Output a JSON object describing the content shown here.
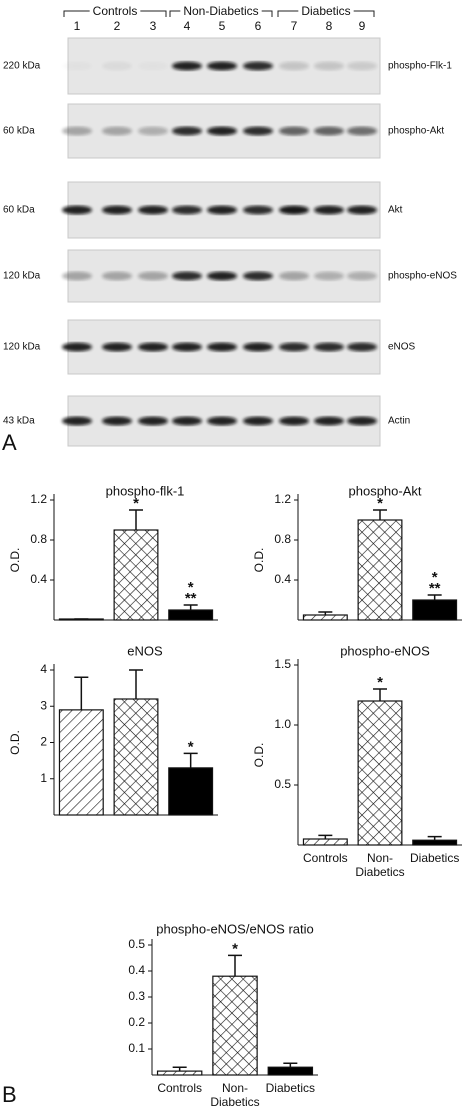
{
  "panel_labels": [
    "A",
    "B"
  ],
  "blot": {
    "groups": [
      "Controls",
      "Non-Diabetics",
      "Diabetics"
    ],
    "lanes": [
      "1",
      "2",
      "3",
      "4",
      "5",
      "6",
      "7",
      "8",
      "9"
    ],
    "rows": [
      {
        "size": "220 kDa",
        "protein": "phospho-Flk-1"
      },
      {
        "size": "60 kDa",
        "protein": "phospho-Akt"
      },
      {
        "size": "60 kDa",
        "protein": "Akt"
      },
      {
        "size": "120 kDa",
        "protein": "phospho-eNOS"
      },
      {
        "size": "120 kDa",
        "protein": "eNOS"
      },
      {
        "size": "43 kDa",
        "protein": "Actin"
      }
    ]
  },
  "chart_data": [
    {
      "type": "bar",
      "title": "phospho-flk-1",
      "ylabel": "O.D.",
      "values": [
        0.01,
        0.9,
        0.1
      ],
      "errors": [
        0,
        0.2,
        0.05
      ],
      "patterns": [
        "hatch",
        "crosshatch",
        "solid"
      ],
      "ylim": [
        0,
        1.2
      ],
      "yticks": [
        0.4,
        0.8,
        1.2
      ],
      "annotations": [
        {
          "index": 1,
          "lines": [
            "*"
          ]
        },
        {
          "index": 2,
          "lines": [
            "*",
            "**"
          ]
        }
      ]
    },
    {
      "type": "bar",
      "title": "phospho-Akt",
      "ylabel": "O.D.",
      "values": [
        0.05,
        1.0,
        0.2
      ],
      "errors": [
        0.03,
        0.1,
        0.05
      ],
      "patterns": [
        "hatch",
        "crosshatch",
        "solid"
      ],
      "ylim": [
        0,
        1.2
      ],
      "yticks": [
        0.4,
        0.8,
        1.2
      ],
      "annotations": [
        {
          "index": 1,
          "lines": [
            "*"
          ]
        },
        {
          "index": 2,
          "lines": [
            "*",
            "**"
          ]
        }
      ]
    },
    {
      "type": "bar",
      "title": "eNOS",
      "ylabel": "O.D.",
      "values": [
        2.9,
        3.2,
        1.3
      ],
      "errors": [
        0.9,
        0.8,
        0.4
      ],
      "patterns": [
        "hatch",
        "crosshatch",
        "solid"
      ],
      "ylim": [
        0,
        4
      ],
      "yticks": [
        1,
        2,
        3,
        4
      ],
      "annotations": [
        {
          "index": 2,
          "lines": [
            "*"
          ]
        }
      ]
    },
    {
      "type": "bar",
      "title": "phospho-eNOS",
      "ylabel": "O.D.",
      "categories": [
        [
          "Controls"
        ],
        [
          "Non-",
          "Diabetics"
        ],
        [
          "Diabetics"
        ]
      ],
      "values": [
        0.05,
        1.2,
        0.04
      ],
      "errors": [
        0.03,
        0.1,
        0.03
      ],
      "patterns": [
        "hatch",
        "crosshatch",
        "solid"
      ],
      "ylim": [
        0,
        1.5
      ],
      "yticks": [
        0.5,
        {
          "value": 1,
          "label": "1.0"
        },
        1.5
      ],
      "annotations": [
        {
          "index": 1,
          "lines": [
            "*"
          ]
        }
      ]
    },
    {
      "type": "bar",
      "title": "phospho-eNOS/eNOS ratio",
      "categories": [
        [
          "Controls"
        ],
        [
          "Non-",
          "Diabetics"
        ],
        [
          "Diabetics"
        ]
      ],
      "values": [
        0.015,
        0.38,
        0.03
      ],
      "errors": [
        0.015,
        0.08,
        0.015
      ],
      "patterns": [
        "hatch",
        "crosshatch",
        "solid"
      ],
      "ylim": [
        0,
        0.5
      ],
      "yticks": [
        0.1,
        0.2,
        0.3,
        0.4,
        0.5
      ],
      "annotations": [
        {
          "index": 1,
          "lines": [
            "*"
          ]
        }
      ]
    }
  ]
}
